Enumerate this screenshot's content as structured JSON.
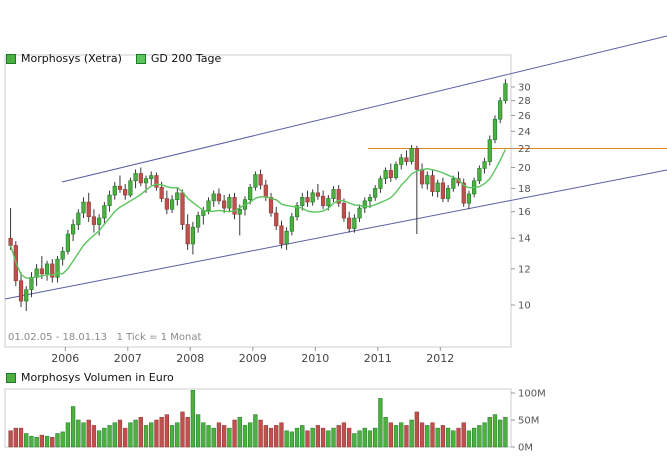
{
  "meta": {
    "period_text": "01.02.05 - 18.01.13   1 Tick = 1 Monat"
  },
  "legend": {
    "series1": "Morphosys (Xetra)",
    "series2": "GD 200 Tage",
    "volume": "Morphosys Volumen in Euro"
  },
  "colors": {
    "up": "#4caf3f",
    "up_border": "#1d7a28",
    "down": "#c0504d",
    "down_border": "#8c3836",
    "ma": "#5cc45c",
    "wick": "#222222",
    "channel": "#5b5ea6",
    "resistance": "#e2861b",
    "axis": "#cccccc",
    "tick": "#999999",
    "tick_text": "#555555"
  },
  "chart_data": {
    "type": "candlestick+volume",
    "title": "Morphosys (Xetra)",
    "ma_label": "GD 200 Tage",
    "volume_label": "Morphosys Volumen in Euro",
    "start": "2005-02",
    "end": "2013-01",
    "tick_interval": "1 Monat",
    "scale": "log",
    "y_ticks": [
      10,
      12,
      14,
      16,
      18,
      20,
      22,
      24,
      26,
      28,
      30
    ],
    "x_ticks": [
      {
        "label": "2006",
        "month_index": 11
      },
      {
        "label": "2007",
        "month_index": 23
      },
      {
        "label": "2008",
        "month_index": 35
      },
      {
        "label": "2009",
        "month_index": 47
      },
      {
        "label": "2010",
        "month_index": 59
      },
      {
        "label": "2011",
        "month_index": 71
      },
      {
        "label": "2012",
        "month_index": 83
      }
    ],
    "volume_ticks": [
      {
        "label": "100M",
        "value": 100
      },
      {
        "label": "50M",
        "value": 50
      },
      {
        "label": "0M",
        "value": 0
      }
    ],
    "annotations": {
      "channel_upper": [
        [
          62,
          182
        ],
        [
          667,
          36
        ]
      ],
      "channel_lower": [
        [
          5,
          299
        ],
        [
          667,
          170
        ]
      ],
      "resistance_level": 22,
      "resistance_from_x": 368
    },
    "candles": [
      [
        14.0,
        16.3,
        13.2,
        13.5
      ],
      [
        13.5,
        13.8,
        11.0,
        11.3
      ],
      [
        11.3,
        11.8,
        9.9,
        10.2
      ],
      [
        10.2,
        11.0,
        9.7,
        10.8
      ],
      [
        10.8,
        11.8,
        10.4,
        11.5
      ],
      [
        11.5,
        12.3,
        11.0,
        12.0
      ],
      [
        12.0,
        12.8,
        11.4,
        11.7
      ],
      [
        11.7,
        12.5,
        11.3,
        12.3
      ],
      [
        12.3,
        12.6,
        11.2,
        11.5
      ],
      [
        11.5,
        12.8,
        11.2,
        12.6
      ],
      [
        12.6,
        13.4,
        12.2,
        13.1
      ],
      [
        13.1,
        14.6,
        12.9,
        14.3
      ],
      [
        14.3,
        15.4,
        13.8,
        15.0
      ],
      [
        15.0,
        16.2,
        14.6,
        15.9
      ],
      [
        15.9,
        17.2,
        15.5,
        16.8
      ],
      [
        16.8,
        17.6,
        15.2,
        15.6
      ],
      [
        15.6,
        16.2,
        14.4,
        15.0
      ],
      [
        15.0,
        15.8,
        14.2,
        15.5
      ],
      [
        15.5,
        16.8,
        15.1,
        16.5
      ],
      [
        16.5,
        17.8,
        16.0,
        17.4
      ],
      [
        17.4,
        18.6,
        17.0,
        18.2
      ],
      [
        18.2,
        19.2,
        17.6,
        17.9
      ],
      [
        17.9,
        18.4,
        17.0,
        17.4
      ],
      [
        17.4,
        19.0,
        17.2,
        18.7
      ],
      [
        18.7,
        19.8,
        18.0,
        19.4
      ],
      [
        19.4,
        20.0,
        18.2,
        18.5
      ],
      [
        18.5,
        19.2,
        17.6,
        18.9
      ],
      [
        18.9,
        19.6,
        18.3,
        19.2
      ],
      [
        19.2,
        19.5,
        17.8,
        18.1
      ],
      [
        18.1,
        18.6,
        16.8,
        17.1
      ],
      [
        17.1,
        17.8,
        15.8,
        16.2
      ],
      [
        16.2,
        17.4,
        15.9,
        17.0
      ],
      [
        17.0,
        18.0,
        16.5,
        17.6
      ],
      [
        17.6,
        17.9,
        14.6,
        15.0
      ],
      [
        15.0,
        15.8,
        13.2,
        13.6
      ],
      [
        13.6,
        15.2,
        12.9,
        14.8
      ],
      [
        14.8,
        16.0,
        14.4,
        15.7
      ],
      [
        15.7,
        16.4,
        15.0,
        16.1
      ],
      [
        16.1,
        17.2,
        15.8,
        16.9
      ],
      [
        16.9,
        17.8,
        16.4,
        17.5
      ],
      [
        17.5,
        18.0,
        16.6,
        16.9
      ],
      [
        16.9,
        17.4,
        15.9,
        16.3
      ],
      [
        16.3,
        17.5,
        16.0,
        17.2
      ],
      [
        17.2,
        17.6,
        15.4,
        15.8
      ],
      [
        15.8,
        16.6,
        14.2,
        16.2
      ],
      [
        16.2,
        17.3,
        15.7,
        17.0
      ],
      [
        17.0,
        18.4,
        16.6,
        18.1
      ],
      [
        18.1,
        19.6,
        17.8,
        19.3
      ],
      [
        19.3,
        19.8,
        17.9,
        18.3
      ],
      [
        18.3,
        18.8,
        16.9,
        17.2
      ],
      [
        17.2,
        17.6,
        15.6,
        15.9
      ],
      [
        15.9,
        16.4,
        14.6,
        14.9
      ],
      [
        14.9,
        15.3,
        13.3,
        13.6
      ],
      [
        13.6,
        14.8,
        13.2,
        14.5
      ],
      [
        14.5,
        15.9,
        14.2,
        15.6
      ],
      [
        15.6,
        16.8,
        15.3,
        16.5
      ],
      [
        16.5,
        17.6,
        16.1,
        17.2
      ],
      [
        17.2,
        17.8,
        16.4,
        16.8
      ],
      [
        16.8,
        17.9,
        16.5,
        17.6
      ],
      [
        17.6,
        18.4,
        17.0,
        17.3
      ],
      [
        17.3,
        17.8,
        16.2,
        16.5
      ],
      [
        16.5,
        17.4,
        16.1,
        17.1
      ],
      [
        17.1,
        18.2,
        16.8,
        17.9
      ],
      [
        17.9,
        18.3,
        16.4,
        16.7
      ],
      [
        16.7,
        17.1,
        15.2,
        15.5
      ],
      [
        15.5,
        16.0,
        14.4,
        14.7
      ],
      [
        14.7,
        15.8,
        14.4,
        15.5
      ],
      [
        15.5,
        16.6,
        15.2,
        16.3
      ],
      [
        16.3,
        17.2,
        15.9,
        16.9
      ],
      [
        16.9,
        17.5,
        16.3,
        17.2
      ],
      [
        17.2,
        18.3,
        16.9,
        18.0
      ],
      [
        18.0,
        19.2,
        17.6,
        18.9
      ],
      [
        18.9,
        20.0,
        18.4,
        19.7
      ],
      [
        19.7,
        20.4,
        18.6,
        19.0
      ],
      [
        19.0,
        20.6,
        18.8,
        20.3
      ],
      [
        20.3,
        21.4,
        19.8,
        21.0
      ],
      [
        21.0,
        21.8,
        20.2,
        20.6
      ],
      [
        20.6,
        22.4,
        20.3,
        22.0
      ],
      [
        22.0,
        22.3,
        14.3,
        19.8
      ],
      [
        19.8,
        20.4,
        18.0,
        18.4
      ],
      [
        18.4,
        19.6,
        17.9,
        19.2
      ],
      [
        19.2,
        19.8,
        17.3,
        17.7
      ],
      [
        17.7,
        18.8,
        17.2,
        18.5
      ],
      [
        18.5,
        19.0,
        16.8,
        17.1
      ],
      [
        17.1,
        18.3,
        16.8,
        18.0
      ],
      [
        18.0,
        19.2,
        17.7,
        18.9
      ],
      [
        18.9,
        19.6,
        18.2,
        18.5
      ],
      [
        18.5,
        18.9,
        16.4,
        16.7
      ],
      [
        16.7,
        17.8,
        16.2,
        17.5
      ],
      [
        17.5,
        19.0,
        17.2,
        18.7
      ],
      [
        18.7,
        20.2,
        18.4,
        19.9
      ],
      [
        19.9,
        21.0,
        19.4,
        20.6
      ],
      [
        20.6,
        23.5,
        20.2,
        23.0
      ],
      [
        23.0,
        26.0,
        22.6,
        25.5
      ],
      [
        25.5,
        28.5,
        25.0,
        28.0
      ],
      [
        28.0,
        31.2,
        27.6,
        30.5
      ]
    ],
    "volume_m": [
      30,
      35,
      35,
      25,
      20,
      18,
      22,
      20,
      18,
      25,
      28,
      45,
      75,
      50,
      45,
      50,
      40,
      30,
      35,
      40,
      45,
      50,
      35,
      45,
      50,
      55,
      40,
      45,
      50,
      55,
      60,
      40,
      45,
      65,
      55,
      105,
      60,
      45,
      40,
      35,
      45,
      40,
      35,
      50,
      55,
      40,
      45,
      60,
      50,
      40,
      35,
      40,
      45,
      30,
      28,
      35,
      40,
      30,
      35,
      40,
      35,
      30,
      35,
      40,
      45,
      35,
      25,
      30,
      35,
      30,
      35,
      90,
      55,
      45,
      40,
      45,
      40,
      50,
      65,
      45,
      40,
      45,
      35,
      40,
      35,
      30,
      35,
      45,
      30,
      35,
      40,
      45,
      55,
      60,
      50,
      55
    ]
  }
}
